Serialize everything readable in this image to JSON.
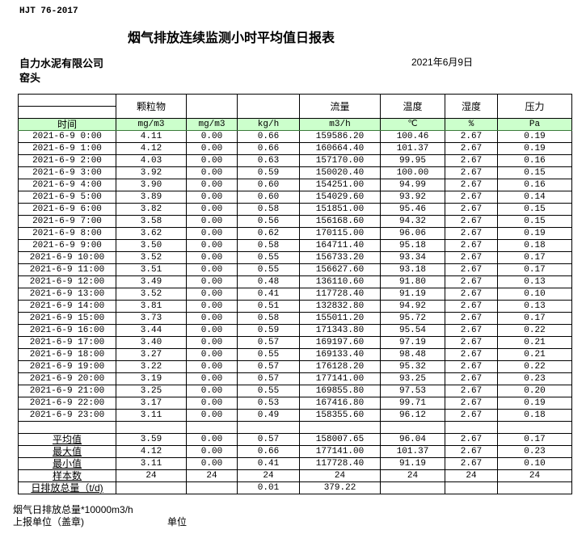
{
  "standard": "HJT  76-2017",
  "title": "烟气排放连续监测小时平均值日报表",
  "company": "自力水泥有限公司",
  "date": "2021年6月9日",
  "location": "窑头",
  "headers": [
    "",
    "颗粒物",
    "",
    "",
    "流量",
    "温度",
    "湿度",
    "压力"
  ],
  "units": [
    "时间",
    "mg/m3",
    "mg/m3",
    "kg/h",
    "m3/h",
    "℃",
    "%",
    "Pa"
  ],
  "rows": [
    [
      "2021-6-9 0:00",
      "4.11",
      "0.00",
      "0.66",
      "159586.20",
      "100.46",
      "2.67",
      "0.19"
    ],
    [
      "2021-6-9 1:00",
      "4.12",
      "0.00",
      "0.66",
      "160664.40",
      "101.37",
      "2.67",
      "0.19"
    ],
    [
      "2021-6-9 2:00",
      "4.03",
      "0.00",
      "0.63",
      "157170.00",
      "99.95",
      "2.67",
      "0.16"
    ],
    [
      "2021-6-9 3:00",
      "3.92",
      "0.00",
      "0.59",
      "150020.40",
      "100.00",
      "2.67",
      "0.15"
    ],
    [
      "2021-6-9 4:00",
      "3.90",
      "0.00",
      "0.60",
      "154251.00",
      "94.99",
      "2.67",
      "0.16"
    ],
    [
      "2021-6-9 5:00",
      "3.89",
      "0.00",
      "0.60",
      "154029.60",
      "93.92",
      "2.67",
      "0.14"
    ],
    [
      "2021-6-9 6:00",
      "3.82",
      "0.00",
      "0.58",
      "151851.00",
      "95.46",
      "2.67",
      "0.15"
    ],
    [
      "2021-6-9 7:00",
      "3.58",
      "0.00",
      "0.56",
      "156168.60",
      "94.32",
      "2.67",
      "0.15"
    ],
    [
      "2021-6-9 8:00",
      "3.62",
      "0.00",
      "0.62",
      "170115.00",
      "96.06",
      "2.67",
      "0.19"
    ],
    [
      "2021-6-9 9:00",
      "3.50",
      "0.00",
      "0.58",
      "164711.40",
      "95.18",
      "2.67",
      "0.18"
    ],
    [
      "2021-6-9 10:00",
      "3.52",
      "0.00",
      "0.55",
      "156733.20",
      "93.34",
      "2.67",
      "0.17"
    ],
    [
      "2021-6-9 11:00",
      "3.51",
      "0.00",
      "0.55",
      "156627.60",
      "93.18",
      "2.67",
      "0.17"
    ],
    [
      "2021-6-9 12:00",
      "3.49",
      "0.00",
      "0.48",
      "136110.60",
      "91.80",
      "2.67",
      "0.13"
    ],
    [
      "2021-6-9 13:00",
      "3.52",
      "0.00",
      "0.41",
      "117728.40",
      "91.19",
      "2.67",
      "0.10"
    ],
    [
      "2021-6-9 14:00",
      "3.81",
      "0.00",
      "0.51",
      "132832.80",
      "94.92",
      "2.67",
      "0.13"
    ],
    [
      "2021-6-9 15:00",
      "3.73",
      "0.00",
      "0.58",
      "155011.20",
      "95.72",
      "2.67",
      "0.17"
    ],
    [
      "2021-6-9 16:00",
      "3.44",
      "0.00",
      "0.59",
      "171343.80",
      "95.54",
      "2.67",
      "0.22"
    ],
    [
      "2021-6-9 17:00",
      "3.40",
      "0.00",
      "0.57",
      "169197.60",
      "97.19",
      "2.67",
      "0.21"
    ],
    [
      "2021-6-9 18:00",
      "3.27",
      "0.00",
      "0.55",
      "169133.40",
      "98.48",
      "2.67",
      "0.21"
    ],
    [
      "2021-6-9 19:00",
      "3.22",
      "0.00",
      "0.57",
      "176128.20",
      "95.32",
      "2.67",
      "0.22"
    ],
    [
      "2021-6-9 20:00",
      "3.19",
      "0.00",
      "0.57",
      "177141.00",
      "93.25",
      "2.67",
      "0.23"
    ],
    [
      "2021-6-9 21:00",
      "3.25",
      "0.00",
      "0.55",
      "169855.80",
      "97.53",
      "2.67",
      "0.20"
    ],
    [
      "2021-6-9 22:00",
      "3.17",
      "0.00",
      "0.53",
      "167416.80",
      "99.71",
      "2.67",
      "0.19"
    ],
    [
      "2021-6-9 23:00",
      "3.11",
      "0.00",
      "0.49",
      "158355.60",
      "96.12",
      "2.67",
      "0.18"
    ]
  ],
  "summary": [
    [
      "平均值",
      "3.59",
      "0.00",
      "0.57",
      "158007.65",
      "96.04",
      "2.67",
      "0.17"
    ],
    [
      "最大值",
      "4.12",
      "0.00",
      "0.66",
      "177141.00",
      "101.37",
      "2.67",
      "0.23"
    ],
    [
      "最小值",
      "3.11",
      "0.00",
      "0.41",
      "117728.40",
      "91.19",
      "2.67",
      "0.10"
    ],
    [
      "样本数",
      "24",
      "24",
      "24",
      "24",
      "24",
      "24",
      "24"
    ],
    [
      "日排放总量（t/d)",
      "",
      "",
      "0.01",
      "379.22",
      "",
      "",
      ""
    ]
  ],
  "footer": {
    "line1": "烟气日排放总量*10000m3/h",
    "line2": "上报单位（盖章)",
    "line3": "单位"
  }
}
